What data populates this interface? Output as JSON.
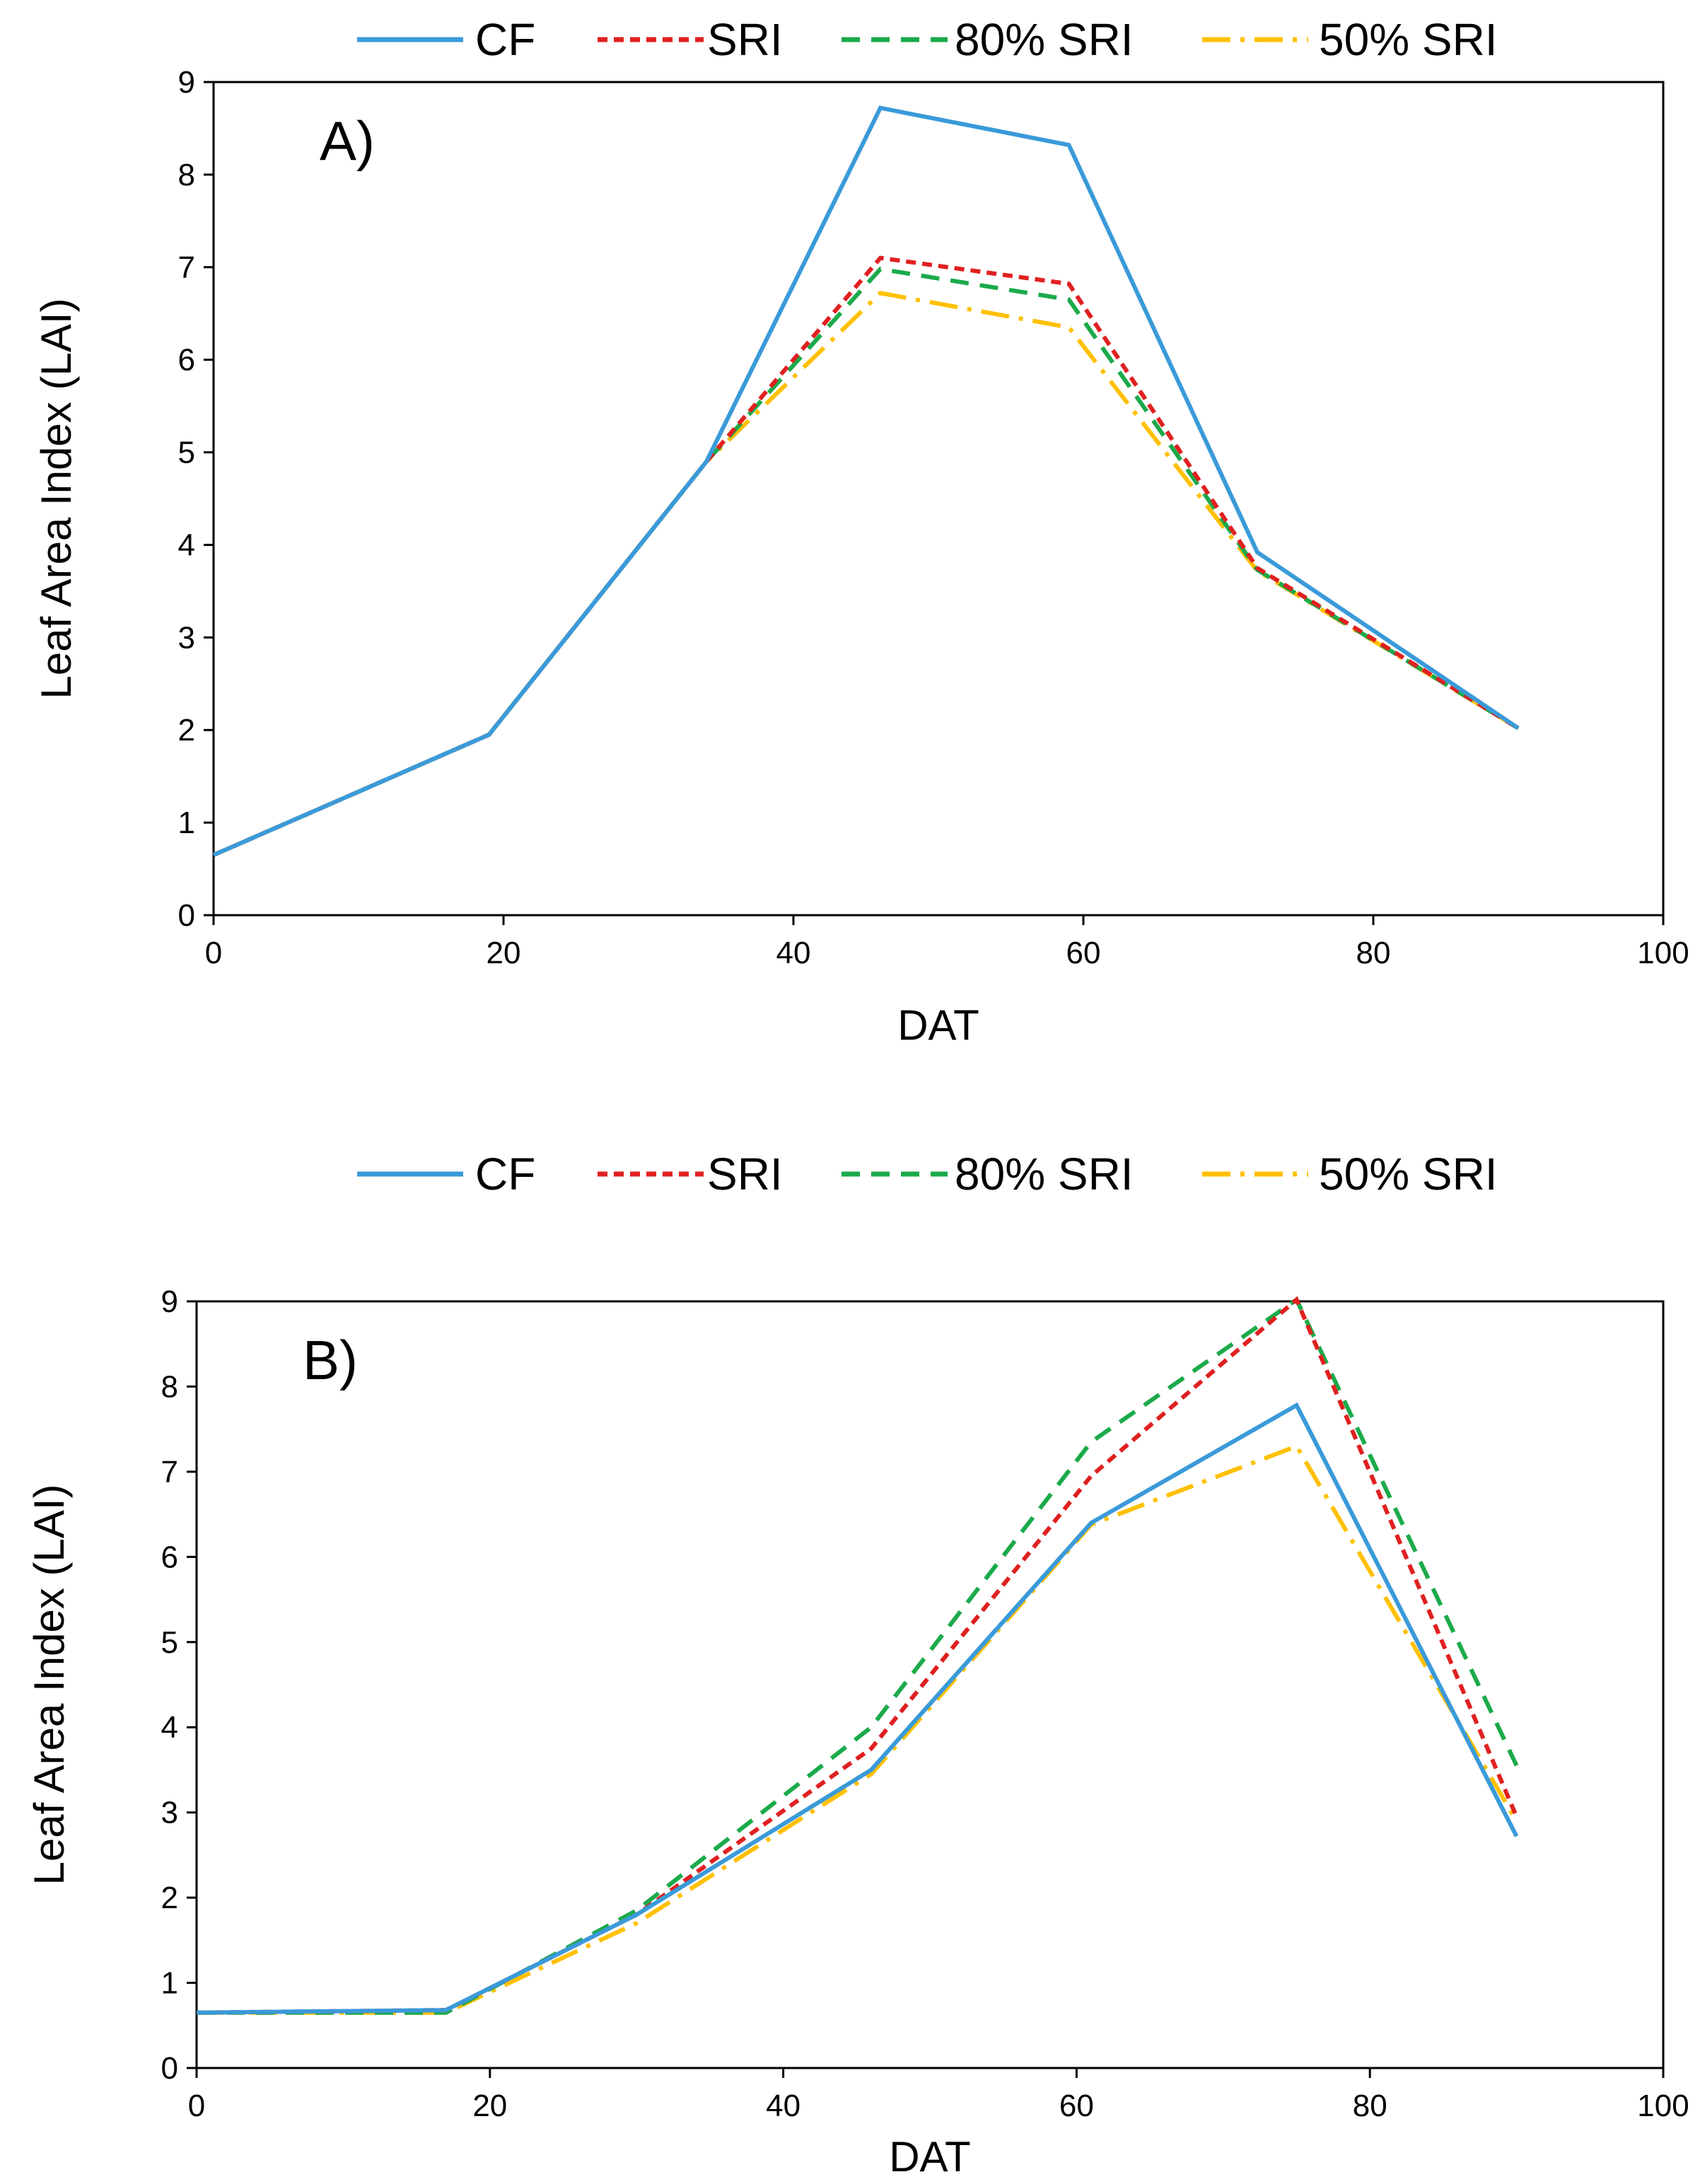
{
  "chart_data": [
    {
      "type": "line",
      "panel_label": "A)",
      "xlabel": "DAT",
      "ylabel": "Leaf Area Index (LAI)",
      "xlim": [
        0,
        100
      ],
      "ylim": [
        0,
        9
      ],
      "xticks": [
        0,
        20,
        40,
        60,
        80,
        100
      ],
      "yticks": [
        0,
        1,
        2,
        3,
        4,
        5,
        6,
        7,
        8,
        9
      ],
      "legend_position": "top",
      "series": [
        {
          "name": "CF",
          "color": "#3A9AD9",
          "x": [
            0,
            19,
            34,
            46,
            59,
            72,
            90
          ],
          "y": [
            0.65,
            1.95,
            4.9,
            8.72,
            8.32,
            3.92,
            2.02
          ]
        },
        {
          "name": "SRI",
          "color": "#E02020",
          "x": [
            0,
            19,
            34,
            46,
            59,
            72,
            90
          ],
          "y": [
            0.65,
            1.95,
            4.9,
            7.1,
            6.82,
            3.75,
            2.02
          ]
        },
        {
          "name": "80% SRI",
          "color": "#1BAA4A",
          "x": [
            0,
            19,
            34,
            46,
            59,
            72,
            90
          ],
          "y": [
            0.65,
            1.95,
            4.9,
            6.98,
            6.65,
            3.73,
            2.02
          ]
        },
        {
          "name": "50% SRI",
          "color": "#FFC000",
          "x": [
            0,
            19,
            34,
            46,
            59,
            72,
            90
          ],
          "y": [
            0.65,
            1.95,
            4.9,
            6.72,
            6.35,
            3.72,
            2.02
          ]
        }
      ]
    },
    {
      "type": "line",
      "panel_label": "B)",
      "xlabel": "DAT",
      "ylabel": "Leaf Area Index (LAI)",
      "xlim": [
        0,
        100
      ],
      "ylim": [
        0,
        9
      ],
      "xticks": [
        0,
        20,
        40,
        60,
        80,
        100
      ],
      "yticks": [
        0,
        1,
        2,
        3,
        4,
        5,
        6,
        7,
        8,
        9
      ],
      "legend_position": "top",
      "series": [
        {
          "name": "CF",
          "color": "#3A9AD9",
          "x": [
            0,
            17,
            30,
            46,
            61,
            75,
            90
          ],
          "y": [
            0.65,
            0.68,
            1.8,
            3.5,
            6.4,
            7.78,
            2.72
          ]
        },
        {
          "name": "SRI",
          "color": "#E02020",
          "x": [
            0,
            17,
            30,
            46,
            61,
            75,
            90
          ],
          "y": [
            0.65,
            0.68,
            1.8,
            3.75,
            6.95,
            9.02,
            2.95
          ]
        },
        {
          "name": "80% SRI",
          "color": "#1BAA4A",
          "x": [
            0,
            17,
            30,
            46,
            61,
            75,
            90
          ],
          "y": [
            0.65,
            0.65,
            1.85,
            4.0,
            7.35,
            9.02,
            3.55
          ]
        },
        {
          "name": "50% SRI",
          "color": "#FFC000",
          "x": [
            0,
            17,
            30,
            46,
            61,
            75,
            90
          ],
          "y": [
            0.65,
            0.65,
            1.7,
            3.45,
            6.38,
            7.3,
            2.9
          ]
        }
      ]
    }
  ]
}
